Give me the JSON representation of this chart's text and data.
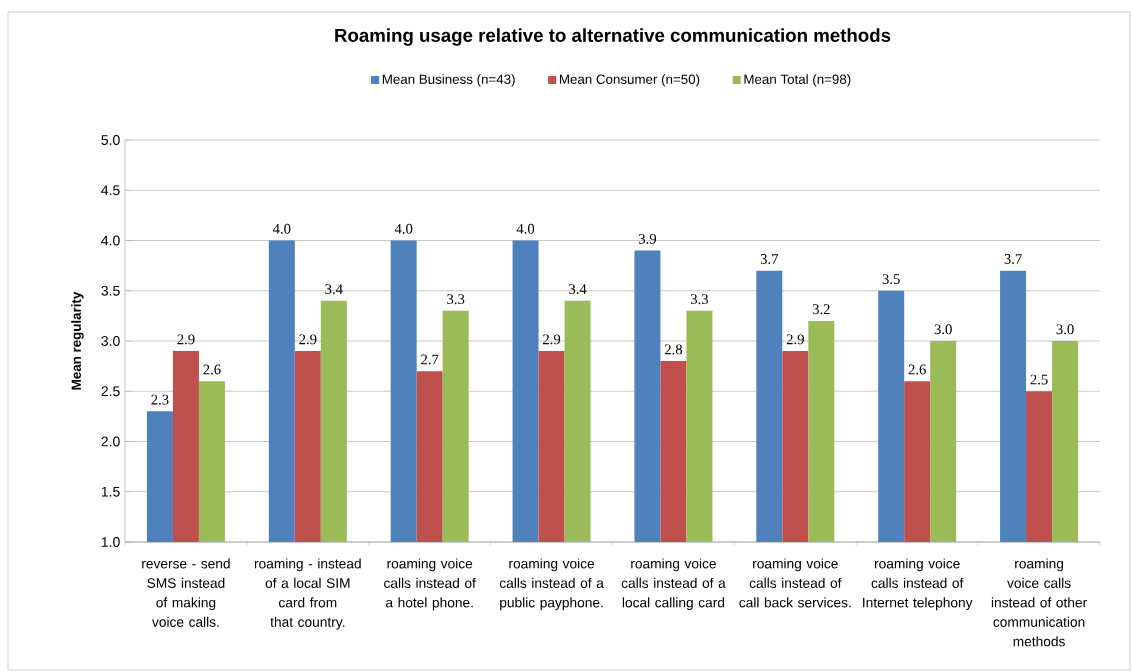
{
  "chart_data": {
    "type": "bar",
    "title": "Roaming usage relative to alternative communication methods",
    "ylabel": "Mean regularity",
    "categories": [
      "reverse - send SMS instead of making voice calls.",
      "roaming - instead of a local SIM card from that country.",
      "roaming voice calls instead of a hotel phone.",
      "roaming voice calls instead of a public payphone.",
      "roaming voice calls instead of a local calling card",
      "roaming voice calls instead of call back services.",
      "roaming voice calls instead of Internet telephony",
      "roaming voice calls instead of other communication methods"
    ],
    "series": [
      {
        "name": "Mean Business (n=43)",
        "color": "#4f81bd",
        "values": [
          2.3,
          4.0,
          4.0,
          4.0,
          3.9,
          3.7,
          3.5,
          3.7
        ],
        "value_labels": [
          "2.3",
          "4.0",
          "4.0",
          "4.0",
          "3.9",
          "3.7",
          "3.5",
          "3.7"
        ]
      },
      {
        "name": "Mean Consumer (n=50)",
        "color": "#c0504d",
        "values": [
          2.9,
          2.9,
          2.7,
          2.9,
          2.8,
          2.9,
          2.6,
          2.5
        ],
        "value_labels": [
          "2.9",
          "2.9",
          "2.7",
          "2.9",
          "2.8",
          "2.9",
          "2.6",
          "2.5"
        ]
      },
      {
        "name": "Mean Total (n=98)",
        "color": "#9bbb59",
        "values": [
          2.6,
          3.4,
          3.3,
          3.4,
          3.3,
          3.2,
          3.0,
          3.0
        ],
        "value_labels": [
          "2.6",
          "3.4",
          "3.3",
          "3.4",
          "3.3",
          "3.2",
          "3.0",
          "3.0"
        ]
      }
    ],
    "ylim": [
      1,
      5
    ],
    "yticks": [
      {
        "value": 1,
        "label": "1.0"
      },
      {
        "value": 1.5,
        "label": "1.5"
      },
      {
        "value": 2,
        "label": "2.0"
      },
      {
        "value": 2.5,
        "label": "2.5"
      },
      {
        "value": 3,
        "label": "3.0"
      },
      {
        "value": 3.5,
        "label": "3.5"
      },
      {
        "value": 4,
        "label": "4.0"
      },
      {
        "value": 4.5,
        "label": "4.5"
      },
      {
        "value": 5,
        "label": "5.0"
      }
    ],
    "grid": "y",
    "legend": "top"
  }
}
